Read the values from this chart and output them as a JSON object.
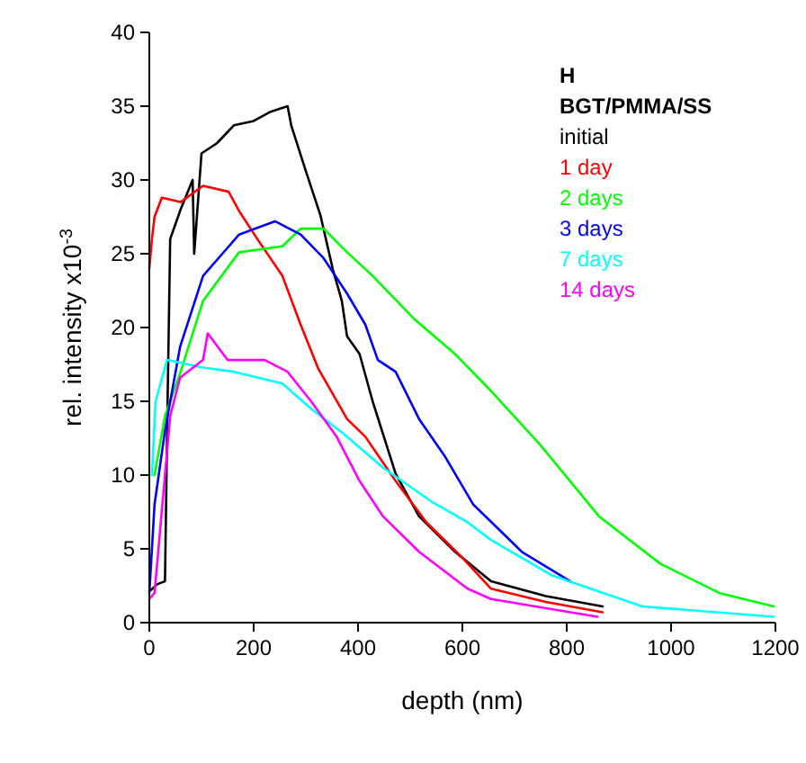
{
  "chart_data": {
    "type": "line",
    "xlabel": "depth (nm)",
    "ylabel": "rel. intensity x10$^{-3}$",
    "legend_title": "H\nBGT/PMMA/SS",
    "legend": "top right",
    "grid": false,
    "xlim": [
      0,
      1200
    ],
    "ylim": [
      0,
      40
    ],
    "xticks": [
      0,
      200,
      400,
      600,
      800,
      1000,
      1200
    ],
    "yticks": [
      0,
      5,
      10,
      15,
      20,
      25,
      30,
      35,
      40
    ],
    "series": [
      {
        "name": "initial",
        "color": "#000000",
        "x": [
          3,
          15,
          30,
          35,
          40,
          60,
          83,
          86,
          100,
          130,
          162,
          200,
          231,
          265,
          272,
          300,
          328,
          352,
          369,
          379,
          403,
          428,
          472,
          517,
          586,
          655,
          760,
          869
        ],
        "values": [
          2.2,
          2.6,
          2.8,
          15,
          26,
          28,
          30,
          25,
          31.8,
          32.5,
          33.7,
          34,
          34.6,
          35,
          33.7,
          30.6,
          27.6,
          23.9,
          21.8,
          19.4,
          18.2,
          15,
          10.1,
          7.2,
          4.8,
          2.8,
          1.8,
          1.1
        ]
      },
      {
        "name": "1 day",
        "color": "#ff0000",
        "x": [
          0,
          5,
          10,
          24,
          60,
          103,
          152,
          172,
          207,
          255,
          290,
          324,
          379,
          414,
          472,
          531,
          600,
          655,
          760,
          869
        ],
        "values": [
          24,
          26,
          27.5,
          28.8,
          28.5,
          29.6,
          29.2,
          27.9,
          26,
          23.5,
          20.2,
          17.2,
          13.8,
          12.6,
          9.6,
          6.8,
          4.4,
          2.3,
          1.4,
          0.7
        ]
      },
      {
        "name": "2 days",
        "color": "#00ff00",
        "x": [
          10,
          30,
          60,
          103,
          172,
          255,
          290,
          334,
          379,
          428,
          507,
          586,
          655,
          748,
          862,
          979,
          1093,
          1197
        ],
        "values": [
          10,
          14,
          17,
          21.8,
          25.1,
          25.5,
          26.7,
          26.7,
          25.1,
          23.5,
          20.6,
          18.2,
          15.7,
          12.1,
          7.2,
          4,
          2,
          1.1
        ]
      },
      {
        "name": "3 days",
        "color": "#0000ff",
        "x": [
          0,
          10,
          30,
          59,
          103,
          172,
          241,
          290,
          334,
          379,
          414,
          438,
          472,
          517,
          566,
          621,
          714,
          807
        ],
        "values": [
          2,
          8,
          13,
          18.7,
          23.5,
          26.3,
          27.2,
          26.3,
          24.7,
          22.3,
          20.2,
          17.8,
          17,
          13.8,
          11.3,
          8,
          4.8,
          2.8
        ]
      },
      {
        "name": "7 days",
        "color": "#00ffff",
        "x": [
          5,
          12,
          34,
          100,
          162,
          255,
          310,
          369,
          448,
          541,
          610,
          655,
          772,
          945,
          1197
        ],
        "values": [
          10,
          15,
          17.8,
          17.3,
          17,
          16.2,
          14.5,
          12.9,
          10.5,
          8.2,
          6.8,
          5.6,
          3.2,
          1.1,
          0.4
        ]
      },
      {
        "name": "14 days",
        "color": "#ff00ff",
        "x": [
          0,
          10,
          25,
          40,
          59,
          103,
          112,
          150,
          221,
          265,
          310,
          359,
          403,
          448,
          517,
          610,
          655,
          859
        ],
        "values": [
          1.6,
          2,
          8,
          14,
          16.6,
          17.8,
          19.6,
          17.8,
          17.8,
          17,
          15,
          12.6,
          9.6,
          7.2,
          4.8,
          2.3,
          1.6,
          0.4
        ]
      }
    ]
  }
}
